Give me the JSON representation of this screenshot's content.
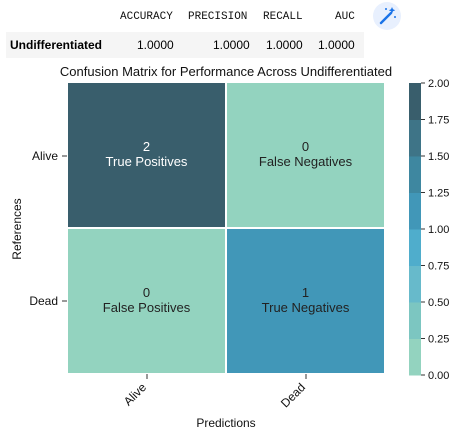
{
  "metrics_table": {
    "columns": [
      "ACCURACY",
      "PRECISION",
      "RECALL",
      "AUC"
    ],
    "rows": [
      {
        "label": "Undifferentiated",
        "values": [
          "1.0000",
          "1.0000",
          "1.0000",
          "1.0000"
        ]
      }
    ]
  },
  "toolbar": {
    "icon": "magic-wand-icon"
  },
  "chart_data": {
    "type": "heatmap",
    "title": "Confusion Matrix for Performance Across Undifferentiated",
    "xlabel": "Predictions",
    "ylabel": "References",
    "x_categories": [
      "Alive",
      "Dead"
    ],
    "y_categories": [
      "Alive",
      "Dead"
    ],
    "cells": [
      [
        {
          "value": 2,
          "value_label": "2",
          "label": "True Positives"
        },
        {
          "value": 0,
          "value_label": "0",
          "label": "False Negatives"
        }
      ],
      [
        {
          "value": 0,
          "value_label": "0",
          "label": "False Positives"
        },
        {
          "value": 1,
          "value_label": "1",
          "label": "True Negatives"
        }
      ]
    ],
    "colorbar": {
      "range": [
        0,
        2
      ],
      "ticks": [
        "0.00",
        "0.25",
        "0.50",
        "0.75",
        "1.00",
        "1.25",
        "1.50",
        "1.75",
        "2.00"
      ],
      "colors": [
        "#93d3bf",
        "#7cc6c1",
        "#67bacb",
        "#4fadcc",
        "#4197b8",
        "#3e87a0",
        "#3e7487",
        "#395e6c"
      ]
    },
    "text_colors": {
      "dark": "#ffffff",
      "light": "#222222"
    }
  }
}
